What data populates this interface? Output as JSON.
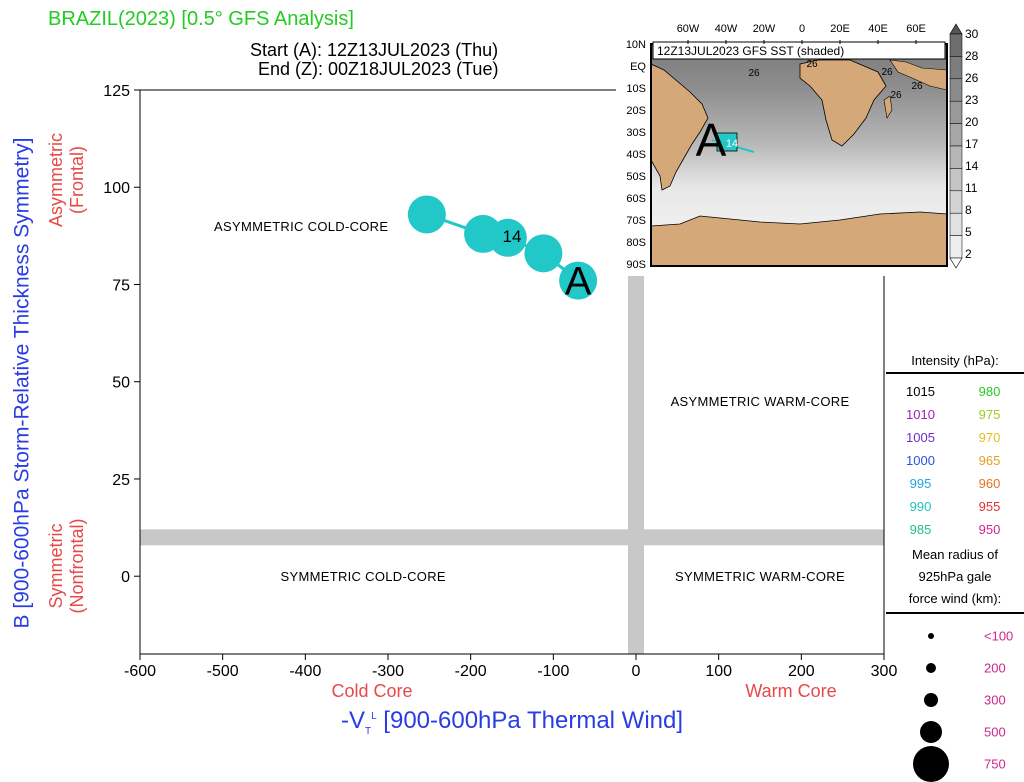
{
  "header": {
    "title": "BRAZIL(2023) [0.5° GFS Analysis]",
    "start": "Start (A): 12Z13JUL2023 (Thu)",
    "end": "End (Z): 00Z18JUL2023 (Tue)"
  },
  "chart_data": {
    "type": "scatter",
    "title": "BRAZIL(2023) [0.5° GFS Analysis]",
    "xlabel": "-V_T^L [900-600hPa Thermal Wind]",
    "ylabel": "B [900-600hPa Storm-Relative Thickness Symmetry]",
    "xlim": [
      -600,
      300
    ],
    "ylim": [
      -20,
      125
    ],
    "xticks": [
      -600,
      -500,
      -400,
      -300,
      -200,
      -100,
      0,
      100,
      200,
      300
    ],
    "yticks": [
      0,
      25,
      50,
      75,
      100,
      125
    ],
    "xtick_labels": [
      "-600",
      "-500",
      "-400",
      "-300",
      "-200",
      "-100",
      "0",
      "100",
      "200",
      "300"
    ],
    "ytick_labels": [
      "0",
      "25",
      "50",
      "75",
      "100",
      "125"
    ],
    "x_side_labels": {
      "left": "Cold Core",
      "right": "Warm Core"
    },
    "y_side_labels": {
      "top": "Asymmetric\n(Frontal)",
      "bottom": "Symmetric\n(Nonfrontal)"
    },
    "quadrants": [
      "ASYMMETRIC COLD-CORE",
      "ASYMMETRIC WARM-CORE",
      "SYMMETRIC COLD-CORE",
      "SYMMETRIC WARM-CORE"
    ],
    "track": {
      "x": [
        -70,
        -112,
        -155,
        -185,
        -253
      ],
      "y": [
        76,
        83,
        87,
        88,
        93
      ],
      "color": "#22c7c7",
      "start_marker": "A",
      "day_label": "14",
      "day_label_point": {
        "x": -150,
        "y": 88
      }
    },
    "thresholds": {
      "x": 0,
      "y": 10
    }
  },
  "inset": {
    "title": "12Z13JUL2023 GFS SST (shaded)",
    "lon_labels": [
      "60W",
      "40W",
      "20W",
      "0",
      "20E",
      "40E",
      "60E"
    ],
    "lat_labels": [
      "10N",
      "EQ",
      "10S",
      "20S",
      "30S",
      "40S",
      "50S",
      "60S",
      "70S",
      "80S",
      "90S"
    ],
    "colorbar_labels": [
      "30",
      "28",
      "26",
      "23",
      "20",
      "17",
      "14",
      "11",
      "8",
      "5",
      "2"
    ],
    "contour_labels": [
      "26",
      "26",
      "26",
      "26",
      "26"
    ],
    "marker": "A",
    "box_label": "14"
  },
  "legend": {
    "intensity_title": "Intensity (hPa):",
    "intensity": [
      {
        "left": "1015",
        "lc": "#000000",
        "right": "980",
        "rc": "#22cc22"
      },
      {
        "left": "1010",
        "lc": "#a020c0",
        "right": "975",
        "rc": "#9acc22"
      },
      {
        "left": "1005",
        "lc": "#7030c8",
        "right": "970",
        "rc": "#e6c020"
      },
      {
        "left": "1000",
        "lc": "#2a50e6",
        "right": "965",
        "rc": "#e6a020"
      },
      {
        "left": "995",
        "lc": "#20a8e0",
        "right": "960",
        "rc": "#e67020"
      },
      {
        "left": "990",
        "lc": "#20c0c0",
        "right": "955",
        "rc": "#e63030"
      },
      {
        "left": "985",
        "lc": "#20c090",
        "right": "950",
        "rc": "#d0268a"
      }
    ],
    "radius_title_1": "Mean radius of",
    "radius_title_2": "925hPa gale",
    "radius_title_3": "force wind (km):",
    "sizes": [
      "<100",
      "200",
      "300",
      "500",
      "750"
    ]
  }
}
